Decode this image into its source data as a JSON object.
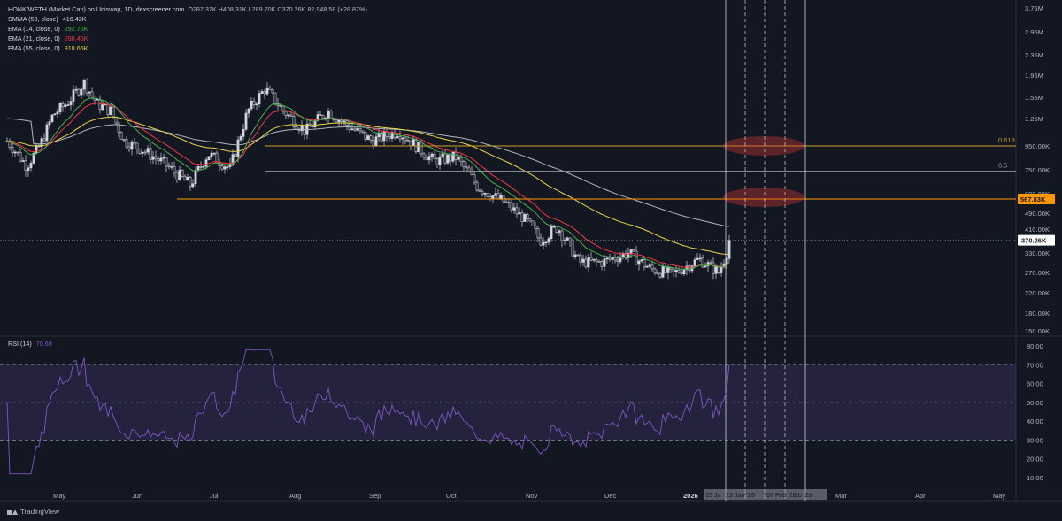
{
  "header": {
    "symbol": "HONK/WETH (Market Cap) on Uniswap, 1D, dexscreener.com",
    "ohlc": "O287.32K H408.31K L289.70K C370.26K 82,948.58 (+28.87%)",
    "indicators": [
      {
        "label": "SMMA (50, close)",
        "value": "416.42K",
        "color": "#d1d4dc"
      },
      {
        "label": "EMA (14, close, 0)",
        "value": "292.76K",
        "color": "#4caf50"
      },
      {
        "label": "EMA (21, close, 0)",
        "value": "288.45K",
        "color": "#f23645"
      },
      {
        "label": "EMA (55, close, 0)",
        "value": "318.65K",
        "color": "#e9d548"
      }
    ]
  },
  "price_axis": {
    "labels": [
      "3.75M",
      "2.95M",
      "2.35M",
      "1.95M",
      "1.55M",
      "1.25M",
      "950.00K",
      "750.00K",
      "600.00K",
      "490.00K",
      "410.00K",
      "330.00K",
      "270.00K",
      "220.00K",
      "180.00K",
      "150.00K"
    ],
    "current_price_tag": "370.26K",
    "highlight_tag": "567.83K",
    "highlight_color": "#ff9800"
  },
  "fib_levels": [
    {
      "label": "0.618",
      "value": 950000,
      "color": "#c9a227"
    },
    {
      "label": "0.5",
      "value": 740000,
      "color": "#9598a1"
    }
  ],
  "rsi": {
    "label": "RSI (14)",
    "value": "70.60",
    "color": "#7e57c2",
    "axis_labels": [
      "80.00",
      "70.00",
      "60.00",
      "50.00",
      "40.00",
      "30.00",
      "20.00",
      "10.00"
    ]
  },
  "time_axis": {
    "labels": [
      "May",
      "Jun",
      "Jul",
      "Aug",
      "Sep",
      "Oct",
      "Nov",
      "Dec",
      "2026",
      "Mar",
      "Apr",
      "May"
    ],
    "highlight_labels": [
      "15 Ja",
      "22 Jan '26",
      "07 Feb '26",
      "eb '26"
    ]
  },
  "footer": {
    "brand": "TradingView"
  },
  "chart_data": {
    "type": "candlestick",
    "interval": "1D",
    "scale": "log",
    "ylim": [
      150000,
      3750000
    ],
    "price_series": {
      "name": "HONK/WETH Market Cap",
      "x": [
        "May",
        "Jun",
        "Jul",
        "Aug",
        "Sep",
        "Oct",
        "Nov",
        "Dec",
        "2026"
      ],
      "close": [
        1350000,
        1050000,
        900000,
        1500000,
        1150000,
        800000,
        380000,
        290000,
        370260
      ]
    },
    "overlays": [
      {
        "name": "SMMA (50, close)",
        "last": 416420
      },
      {
        "name": "EMA (14, close, 0)",
        "last": 292760
      },
      {
        "name": "EMA (21, close, 0)",
        "last": 288450
      },
      {
        "name": "EMA (55, close, 0)",
        "last": 318650
      }
    ],
    "horizontal_levels": [
      {
        "label": "0.618",
        "value": 950000
      },
      {
        "label": "0.5",
        "value": 740000
      },
      {
        "label": "567.83K",
        "value": 567830
      }
    ],
    "rsi": {
      "name": "RSI (14)",
      "last": 70.6,
      "ylim": [
        10,
        80
      ],
      "bands": [
        30,
        50,
        70
      ]
    }
  }
}
